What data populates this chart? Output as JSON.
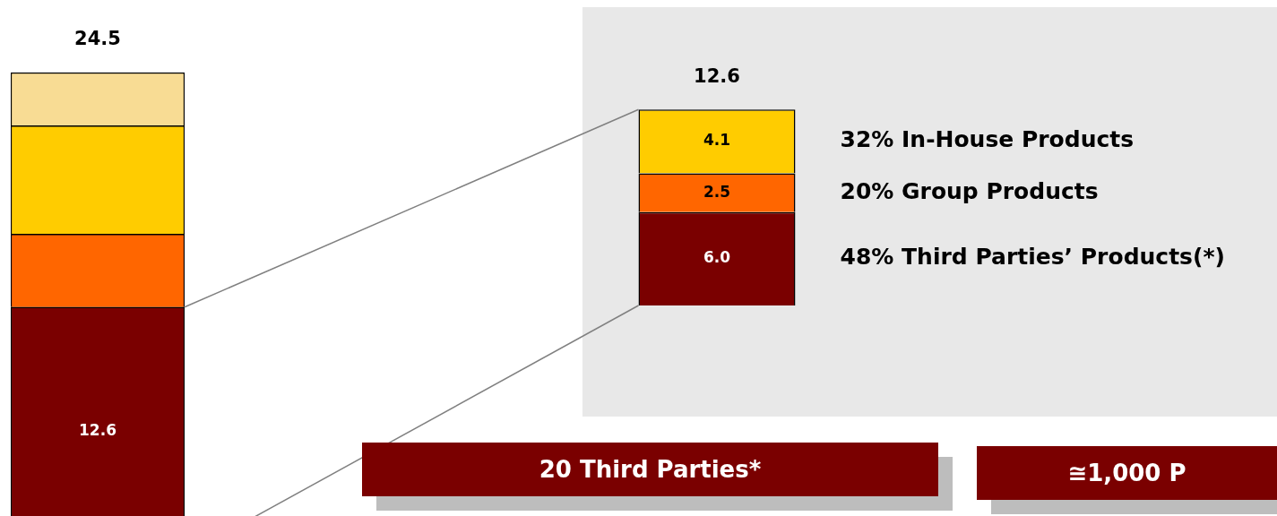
{
  "chart_data": [
    {
      "type": "bar",
      "stacked": true,
      "categories": [
        null
      ],
      "tick_labels": false,
      "legend": false,
      "totals": [
        "24.5"
      ],
      "series": [
        {
          "color": "#7a0000",
          "values": [
            12.6
          ],
          "value_labels": [
            "12.6"
          ]
        },
        {
          "color": "#ff6600",
          "values": [
            3.7
          ]
        },
        {
          "color": "#ffcc00",
          "values": [
            5.5
          ]
        },
        {
          "color": "#f8dc94",
          "values": [
            2.7
          ]
        }
      ]
    },
    {
      "type": "bar",
      "stacked": true,
      "categories": [
        null
      ],
      "tick_labels": false,
      "legend": false,
      "totals": [
        "12.6"
      ],
      "annotations": [
        "20 Third Parties*",
        "≅1,000 P"
      ],
      "series": [
        {
          "name": "48% Third Parties’ Products(*)",
          "color": "#7a0000",
          "values": [
            6.0
          ],
          "value_labels": [
            "6.0"
          ]
        },
        {
          "name": "20% Group Products",
          "color": "#ff6600",
          "values": [
            2.5
          ],
          "value_labels": [
            "2.5"
          ]
        },
        {
          "name": "32% In-House Products",
          "color": "#ffcc00",
          "values": [
            4.1
          ],
          "value_labels": [
            "4.1"
          ]
        }
      ]
    }
  ]
}
